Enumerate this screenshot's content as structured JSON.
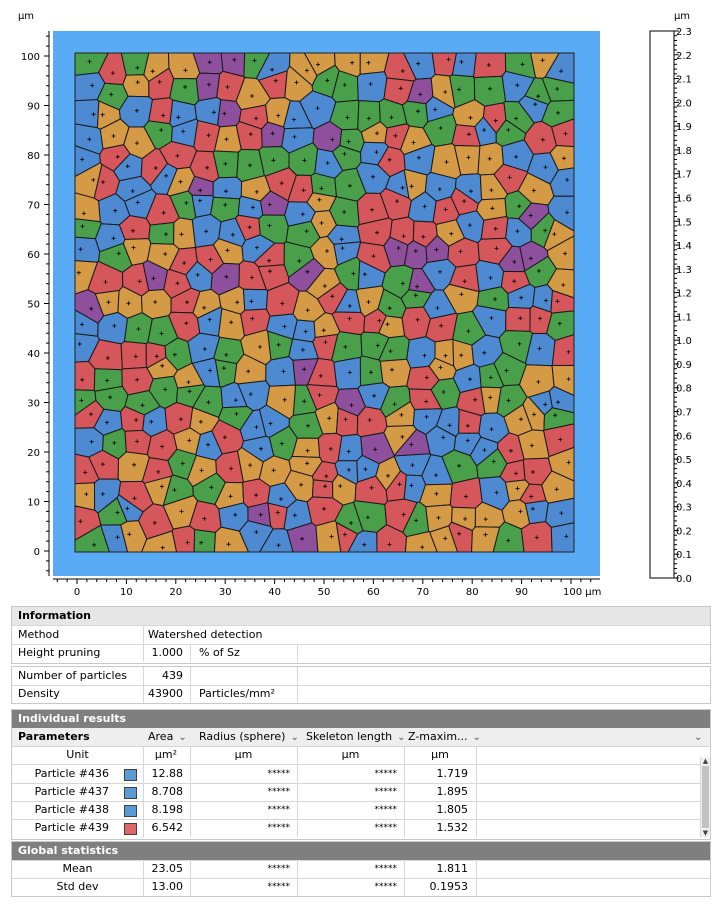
{
  "plot": {
    "unit_left": "µm",
    "y_ticks": [
      "100",
      "90",
      "80",
      "70",
      "60",
      "50",
      "40",
      "30",
      "20",
      "10",
      "0"
    ],
    "x_ticks": [
      "0",
      "10",
      "20",
      "30",
      "40",
      "50",
      "60",
      "70",
      "80",
      "90",
      "100 µm"
    ],
    "frame_color": "#5aabf5",
    "particle_colors": [
      "#d5565b",
      "#4e8ad1",
      "#4aa04a",
      "#d49a45",
      "#8e4f9c"
    ]
  },
  "scale": {
    "unit": "µm",
    "ticks": [
      "2.3",
      "2.2",
      "2.1",
      "2.0",
      "1.9",
      "1.8",
      "1.7",
      "1.6",
      "1.5",
      "1.4",
      "1.3",
      "1.2",
      "1.1",
      "1.0",
      "0.9",
      "0.8",
      "0.7",
      "0.6",
      "0.5",
      "0.4",
      "0.3",
      "0.2",
      "0.1",
      "0.0"
    ]
  },
  "info": {
    "title": "Information",
    "method_label": "Method",
    "method_value": "Watershed detection",
    "pruning_label": "Height pruning",
    "pruning_value": "1.000",
    "pruning_unit": "% of Sz",
    "count_label": "Number of particles",
    "count_value": "439",
    "density_label": "Density",
    "density_value": "43900",
    "density_unit": "Particles/mm²"
  },
  "results": {
    "title": "Individual results",
    "params_label": "Parameters",
    "columns": [
      "Area",
      "Radius (sphere)",
      "Skeleton length",
      "Z-maxim..."
    ],
    "unit_label": "Unit",
    "units": [
      "µm²",
      "µm",
      "µm",
      "µm"
    ],
    "rows": [
      {
        "name": "Particle #436",
        "color": "#5b9bd5",
        "area": "12.88",
        "radius": "*****",
        "skeleton": "*****",
        "zmax": "1.719"
      },
      {
        "name": "Particle #437",
        "color": "#5b9bd5",
        "area": "8.708",
        "radius": "*****",
        "skeleton": "*****",
        "zmax": "1.895"
      },
      {
        "name": "Particle #438",
        "color": "#5b9bd5",
        "area": "8.198",
        "radius": "*****",
        "skeleton": "*****",
        "zmax": "1.805"
      },
      {
        "name": "Particle #439",
        "color": "#e06666",
        "area": "6.542",
        "radius": "*****",
        "skeleton": "*****",
        "zmax": "1.532"
      }
    ]
  },
  "global": {
    "title": "Global statistics",
    "rows": [
      {
        "label": "Mean",
        "area": "23.05",
        "radius": "*****",
        "skeleton": "*****",
        "zmax": "1.811"
      },
      {
        "label": "Std dev",
        "area": "13.00",
        "radius": "*****",
        "skeleton": "*****",
        "zmax": "0.1953"
      }
    ]
  }
}
